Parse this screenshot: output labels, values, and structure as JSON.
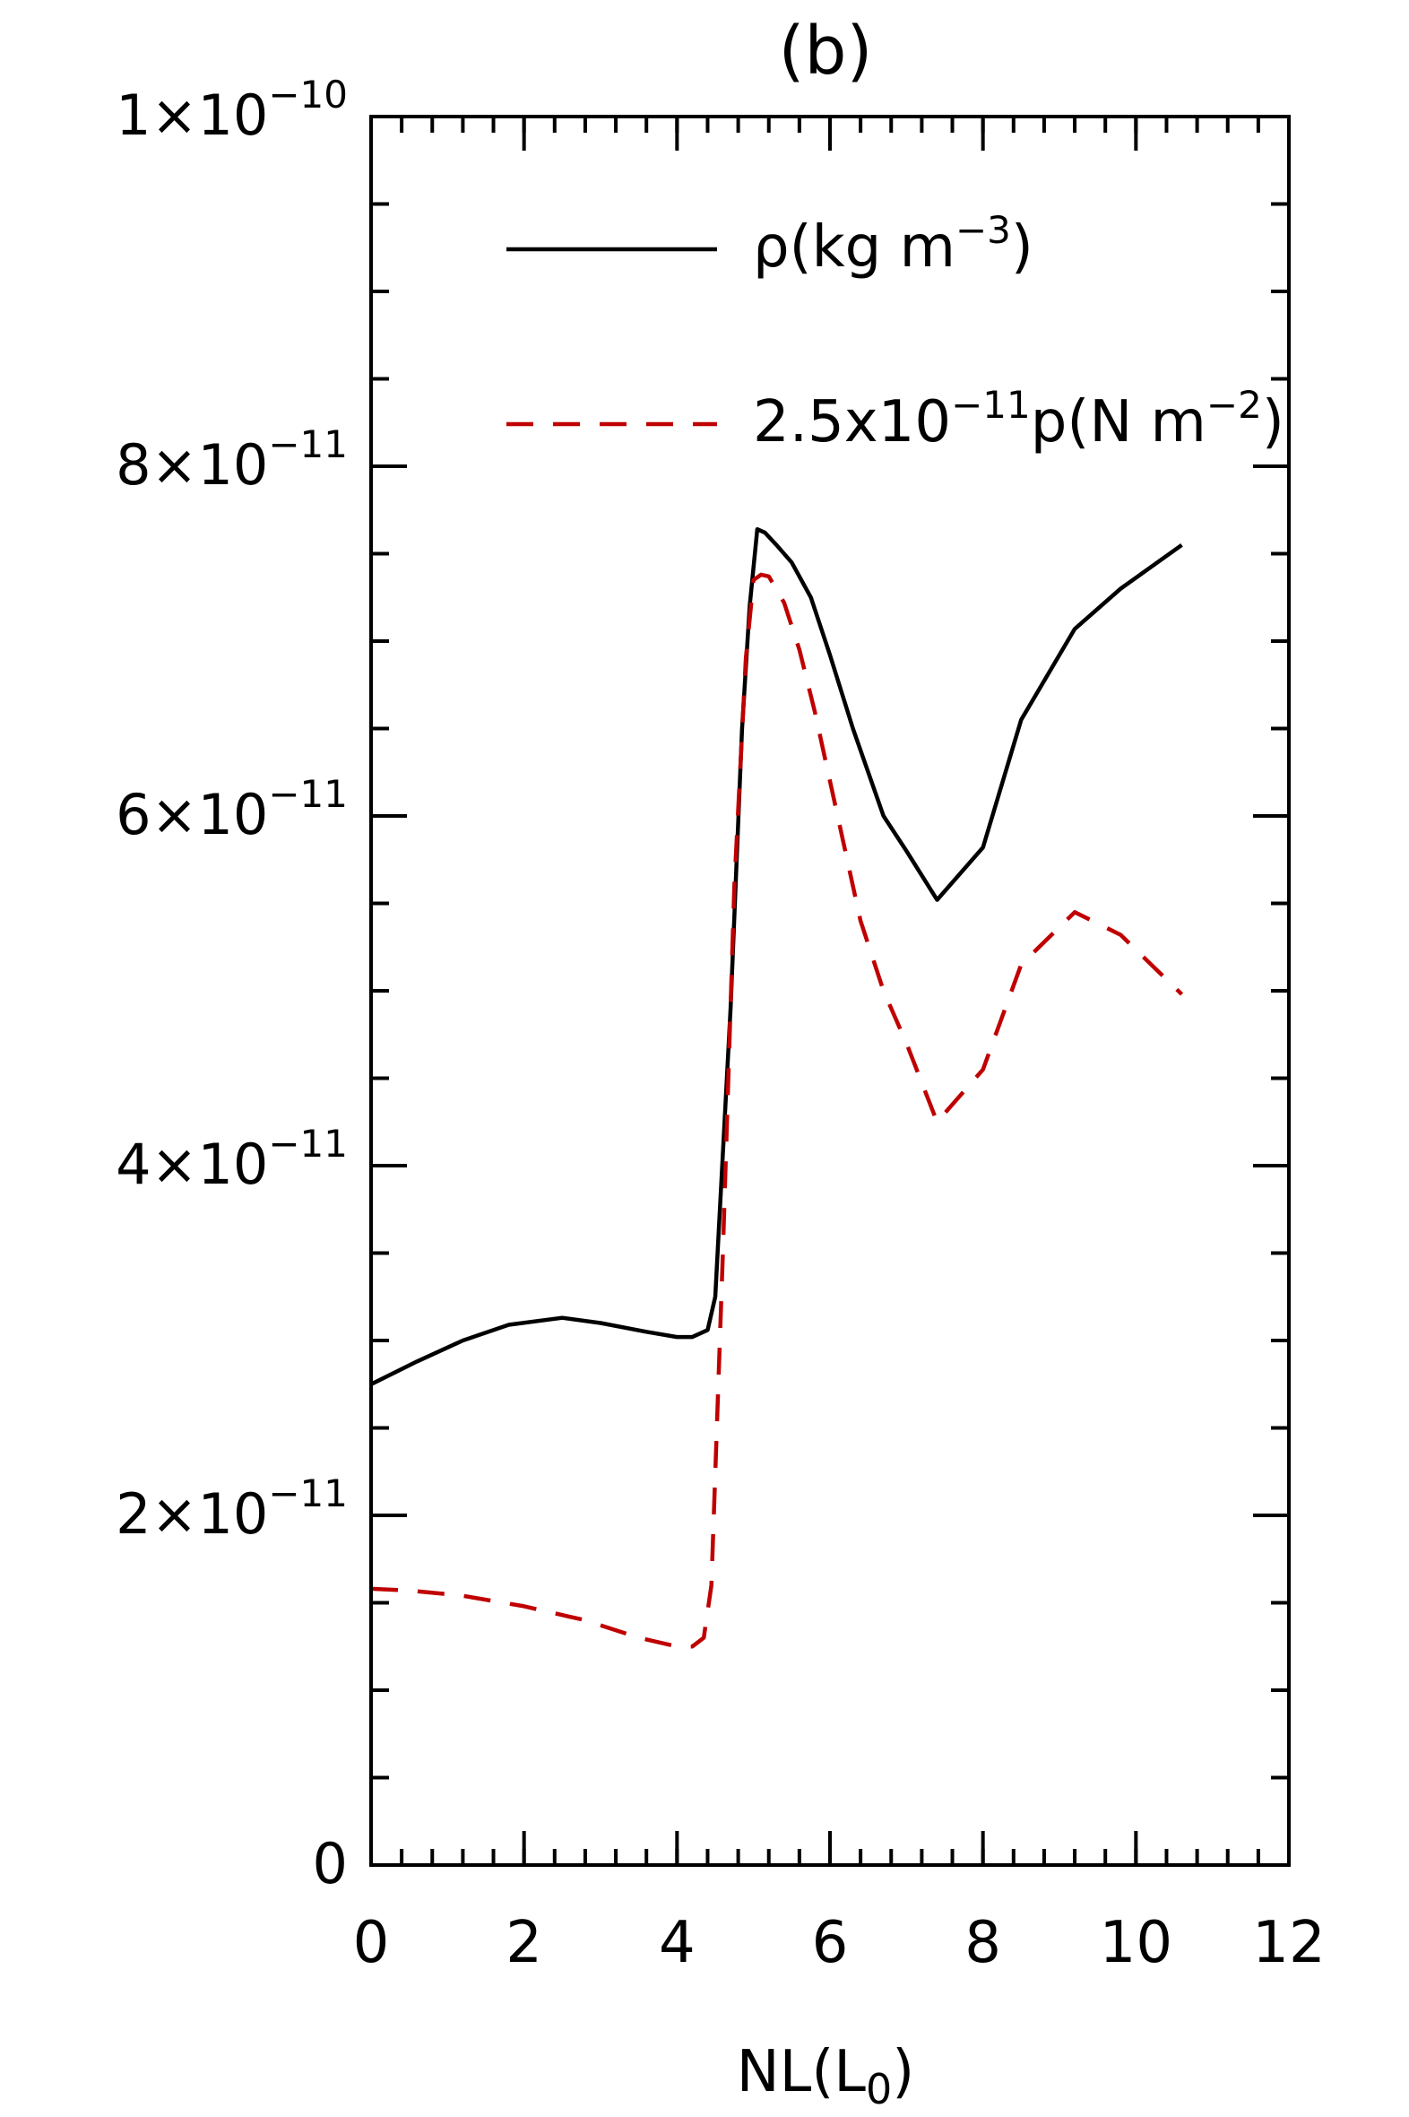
{
  "chart_data": {
    "type": "line",
    "title": "(b)",
    "xlabel": {
      "main": "NL(L",
      "sub": "0",
      "close": ")"
    },
    "ylabel": "",
    "xlim": [
      0,
      12
    ],
    "ylim": [
      0,
      1e-10
    ],
    "x_ticks": [
      {
        "value": 0,
        "label": "0"
      },
      {
        "value": 2,
        "label": "2"
      },
      {
        "value": 4,
        "label": "4"
      },
      {
        "value": 6,
        "label": "6"
      },
      {
        "value": 8,
        "label": "8"
      },
      {
        "value": 10,
        "label": "10"
      },
      {
        "value": 12,
        "label": "12"
      }
    ],
    "y_ticks": [
      {
        "value": 0,
        "base": "0",
        "exp": ""
      },
      {
        "value": 2e-11,
        "base": "2×10",
        "exp": "−11"
      },
      {
        "value": 4e-11,
        "base": "4×10",
        "exp": "−11"
      },
      {
        "value": 6e-11,
        "base": "6×10",
        "exp": "−11"
      },
      {
        "value": 8e-11,
        "base": "8×10",
        "exp": "−11"
      },
      {
        "value": 1e-10,
        "base": "1×10",
        "exp": "−10"
      }
    ],
    "x_minor_step": 0.4,
    "y_minor_step": 5e-12,
    "legend_position": "top",
    "series": [
      {
        "key": "rho",
        "legend": {
          "main": "ρ(kg m",
          "sup": "−3",
          "close": ")"
        },
        "color": "#000000",
        "dash": "solid",
        "x": [
          0.0,
          0.6,
          1.2,
          1.8,
          2.5,
          3.0,
          3.6,
          4.0,
          4.2,
          4.4,
          4.5,
          4.7,
          4.85,
          4.95,
          5.05,
          5.15,
          5.3,
          5.5,
          5.75,
          6.0,
          6.3,
          6.7,
          7.0,
          7.4,
          8.0,
          8.5,
          9.2,
          9.8,
          10.6
        ],
        "y": [
          2.75e-11,
          2.88e-11,
          3e-11,
          3.09e-11,
          3.13e-11,
          3.1e-11,
          3.05e-11,
          3.02e-11,
          3.02e-11,
          3.06e-11,
          3.25e-11,
          4.9e-11,
          6.5e-11,
          7.2e-11,
          7.64e-11,
          7.62e-11,
          7.55e-11,
          7.45e-11,
          7.25e-11,
          6.92e-11,
          6.5e-11,
          6e-11,
          5.8e-11,
          5.52e-11,
          5.82e-11,
          6.55e-11,
          7.07e-11,
          7.3e-11,
          7.55e-11
        ]
      },
      {
        "key": "pressure",
        "legend": {
          "main": "2.5x10",
          "sup": "−11",
          "mid": "p(N m",
          "sup2": "−2",
          "close": ")"
        },
        "color": "#c00000",
        "dash": "dashed",
        "x": [
          0.0,
          0.5,
          1.2,
          2.0,
          2.8,
          3.5,
          4.0,
          4.2,
          4.35,
          4.45,
          4.6,
          4.75,
          4.9,
          5.0,
          5.1,
          5.2,
          5.4,
          5.6,
          5.8,
          6.1,
          6.4,
          6.7,
          7.0,
          7.4,
          8.0,
          8.5,
          9.2,
          9.8,
          10.6
        ],
        "y": [
          1.58e-11,
          1.57e-11,
          1.54e-11,
          1.48e-11,
          1.4e-11,
          1.3e-11,
          1.25e-11,
          1.25e-11,
          1.3e-11,
          1.6e-11,
          3.5e-11,
          5.6e-11,
          6.9e-11,
          7.35e-11,
          7.38e-11,
          7.37e-11,
          7.22e-11,
          6.95e-11,
          6.6e-11,
          6e-11,
          5.4e-11,
          5e-11,
          4.7e-11,
          4.25e-11,
          4.55e-11,
          5.15e-11,
          5.45e-11,
          5.32e-11,
          4.98e-11
        ]
      }
    ]
  }
}
